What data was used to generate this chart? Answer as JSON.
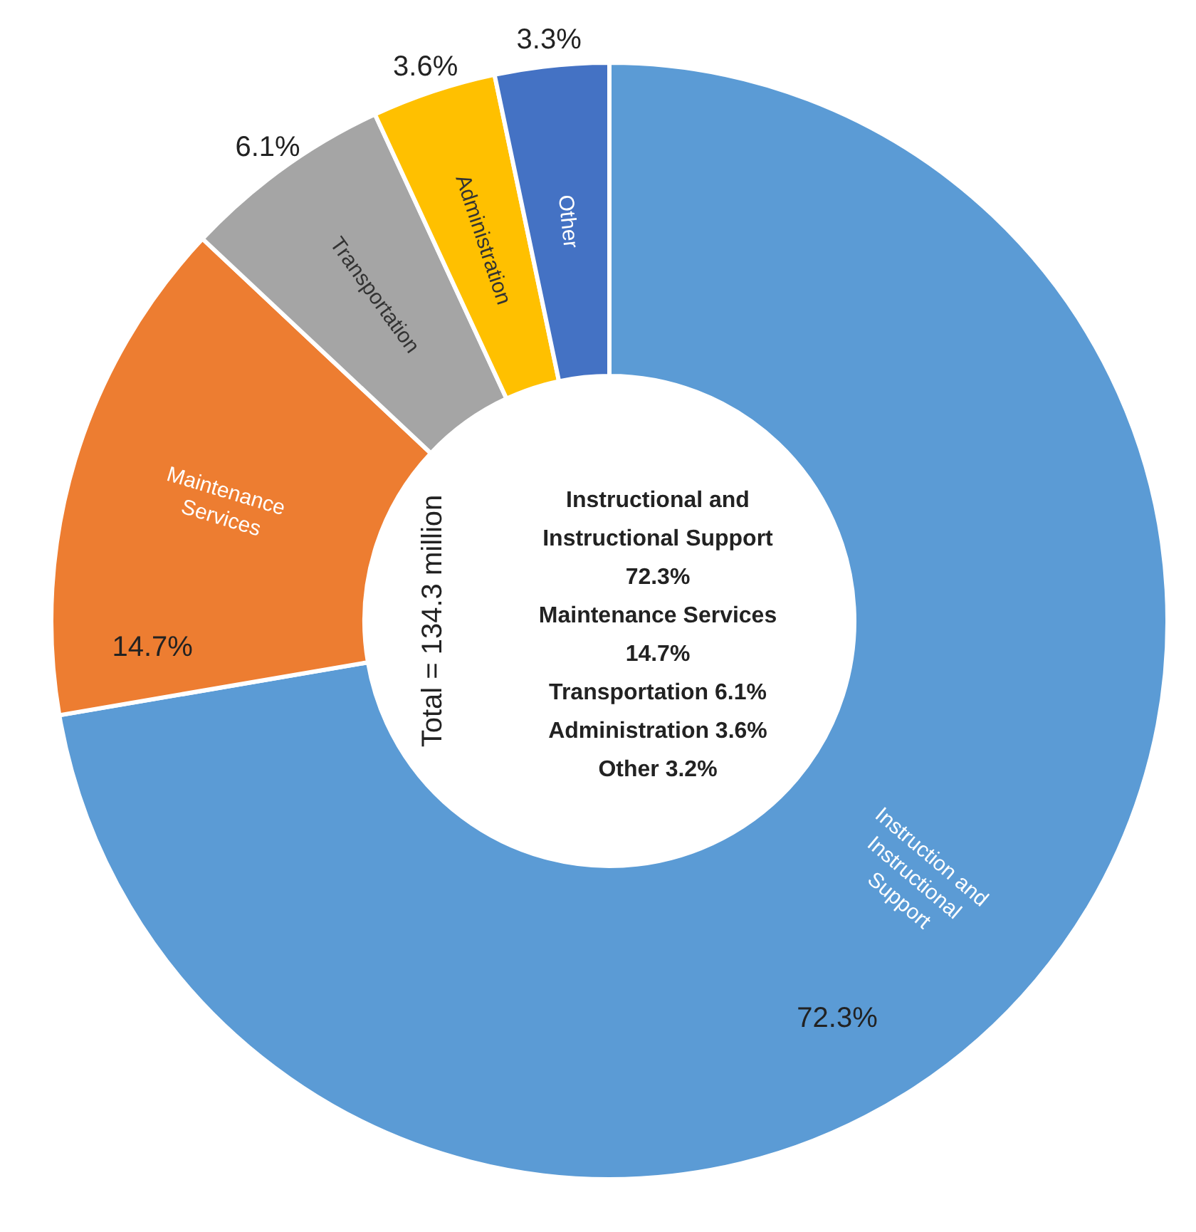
{
  "chart_data": {
    "type": "donut",
    "categories": [
      "Instruction and Instructional Support",
      "Maintenance Services",
      "Transportation",
      "Administration",
      "Other"
    ],
    "values": [
      72.3,
      14.7,
      6.1,
      3.6,
      3.3
    ],
    "colors": [
      "#5b9bd5",
      "#ed7d31",
      "#a5a5a5",
      "#ffc000",
      "#4472c4"
    ],
    "value_labels": [
      "72.3%",
      "14.7%",
      "6.1%",
      "3.6%",
      "3.3%"
    ],
    "annotations": [
      "Total = 134.3 million",
      "Instructional and\nInstructional Support\n72.3%\nMaintenance Services\n14.7%\nTransportation 6.1%\nAdministration 3.6%\nOther 3.2%"
    ]
  }
}
